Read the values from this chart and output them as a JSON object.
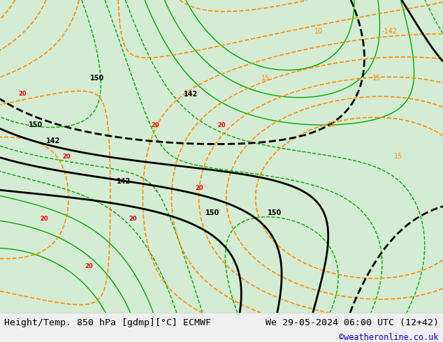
{
  "title_left": "Height/Temp. 850 hPa [gdmp][°C] ECMWF",
  "title_right": "We 29-05-2024 06:00 UTC (12+42)",
  "watermark": "©weatheronline.co.uk",
  "bg_color": "#f0f0f0",
  "map_bg": "#e8f4e8",
  "fig_width": 6.34,
  "fig_height": 4.9,
  "dpi": 100,
  "bottom_bar_color": "#f0f0f0",
  "bottom_text_color": "#000000",
  "watermark_color": "#0000cc",
  "font_size_title": 9.5,
  "font_size_watermark": 8.5
}
